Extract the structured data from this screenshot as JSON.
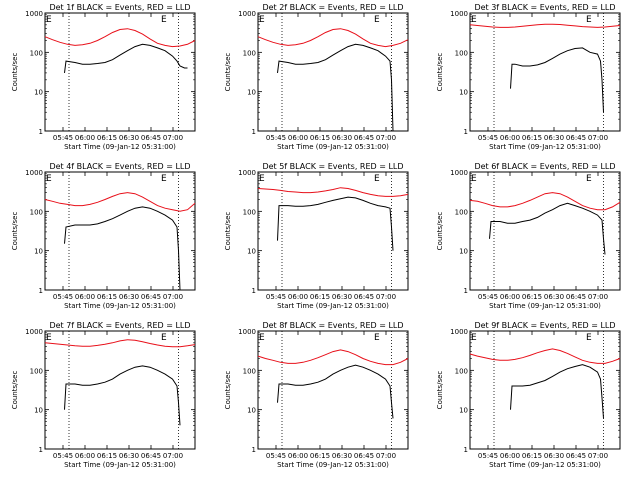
{
  "figure": {
    "start_time_label": "Start Time (09-Jan-12 05:31:00)",
    "ylabel": "Counts/sec",
    "x_ticks": [
      "05:45",
      "06:00",
      "06:15",
      "06:30",
      "06:45",
      "07:00"
    ],
    "y_ticks": [
      "1",
      "10",
      "100",
      "1000"
    ],
    "marker_text": "E",
    "colors": {
      "events": "#000000",
      "lld": "#e8101a",
      "guide": "#000000"
    }
  },
  "chart_data": [
    {
      "type": "line",
      "title": "Det 1f BLACK = Events, RED = LLD",
      "xlabel": "Start Time (09-Jan-12 05:31:00)",
      "ylabel": "Counts/sec",
      "xlim": [
        0,
        100
      ],
      "ylim": [
        1,
        1000
      ],
      "yscale": "log",
      "x": [
        0,
        5,
        10,
        15,
        20,
        25,
        30,
        35,
        40,
        45,
        50,
        55,
        60,
        65,
        70,
        75,
        80,
        85,
        90,
        95,
        100
      ],
      "guide_lines": [
        16,
        89
      ],
      "series": [
        {
          "name": "LLD",
          "color": "red",
          "values": [
            250,
            210,
            180,
            160,
            150,
            155,
            170,
            200,
            250,
            320,
            380,
            400,
            360,
            290,
            220,
            170,
            150,
            140,
            145,
            160,
            200
          ]
        },
        {
          "name": "Events",
          "color": "black",
          "x": [
            13,
            14,
            20,
            25,
            30,
            35,
            40,
            45,
            50,
            55,
            60,
            65,
            70,
            75,
            80,
            85,
            88,
            90,
            93,
            95
          ],
          "values": [
            30,
            60,
            55,
            50,
            50,
            52,
            55,
            65,
            85,
            110,
            140,
            160,
            150,
            130,
            110,
            80,
            60,
            45,
            40,
            40
          ]
        }
      ]
    },
    {
      "type": "line",
      "title": "Det 2f BLACK = Events, RED = LLD",
      "xlabel": "Start Time (09-Jan-12 05:31:00)",
      "ylabel": "Counts/sec",
      "xlim": [
        0,
        100
      ],
      "ylim": [
        1,
        1000
      ],
      "yscale": "log",
      "x": [
        0,
        5,
        10,
        15,
        20,
        25,
        30,
        35,
        40,
        45,
        50,
        55,
        60,
        65,
        70,
        75,
        80,
        85,
        90,
        95,
        100
      ],
      "guide_lines": [
        16,
        89
      ],
      "series": [
        {
          "name": "LLD",
          "color": "red",
          "values": [
            250,
            210,
            180,
            160,
            150,
            155,
            170,
            200,
            250,
            320,
            380,
            400,
            360,
            290,
            220,
            170,
            150,
            140,
            150,
            170,
            210
          ]
        },
        {
          "name": "Events",
          "color": "black",
          "x": [
            13,
            14,
            20,
            25,
            30,
            35,
            40,
            45,
            50,
            55,
            60,
            65,
            70,
            75,
            80,
            85,
            88,
            89,
            90
          ],
          "values": [
            30,
            60,
            55,
            50,
            50,
            52,
            55,
            65,
            85,
            110,
            140,
            160,
            150,
            130,
            110,
            80,
            60,
            20,
            1
          ]
        }
      ]
    },
    {
      "type": "line",
      "title": "Det 3f BLACK = Events, RED = LLD",
      "xlabel": "Start Time (09-Jan-12 05:31:00)",
      "ylabel": "Counts/sec",
      "xlim": [
        0,
        100
      ],
      "ylim": [
        1,
        1000
      ],
      "yscale": "log",
      "x": [
        0,
        5,
        10,
        15,
        20,
        25,
        30,
        35,
        40,
        45,
        50,
        55,
        60,
        65,
        70,
        75,
        80,
        85,
        90,
        95,
        100
      ],
      "guide_lines": [
        16,
        89
      ],
      "series": [
        {
          "name": "LLD",
          "color": "red",
          "values": [
            500,
            480,
            460,
            440,
            430,
            430,
            440,
            460,
            480,
            500,
            520,
            520,
            510,
            490,
            470,
            450,
            440,
            430,
            440,
            460,
            480
          ]
        },
        {
          "name": "Events",
          "color": "black",
          "x": [
            27,
            28,
            30,
            35,
            40,
            45,
            50,
            55,
            60,
            65,
            70,
            75,
            80,
            85,
            87,
            88,
            89
          ],
          "values": [
            12,
            50,
            50,
            45,
            45,
            48,
            55,
            70,
            90,
            110,
            125,
            130,
            100,
            90,
            60,
            20,
            3
          ]
        }
      ]
    },
    {
      "type": "line",
      "title": "Det 4f BLACK = Events, RED = LLD",
      "xlabel": "Start Time (09-Jan-12 05:31:00)",
      "ylabel": "Counts/sec",
      "xlim": [
        0,
        100
      ],
      "ylim": [
        1,
        1000
      ],
      "yscale": "log",
      "x": [
        0,
        5,
        10,
        15,
        20,
        25,
        30,
        35,
        40,
        45,
        50,
        55,
        60,
        65,
        70,
        75,
        80,
        85,
        90,
        95,
        100
      ],
      "guide_lines": [
        16,
        89
      ],
      "series": [
        {
          "name": "LLD",
          "color": "red",
          "values": [
            200,
            180,
            160,
            150,
            140,
            140,
            150,
            170,
            200,
            240,
            280,
            300,
            280,
            230,
            180,
            140,
            120,
            110,
            100,
            110,
            160
          ]
        },
        {
          "name": "Events",
          "color": "black",
          "x": [
            13,
            14,
            20,
            25,
            30,
            35,
            40,
            45,
            50,
            55,
            60,
            65,
            70,
            75,
            80,
            85,
            88,
            89,
            90
          ],
          "values": [
            15,
            40,
            45,
            45,
            45,
            48,
            55,
            65,
            80,
            100,
            120,
            130,
            120,
            100,
            80,
            60,
            40,
            10,
            1
          ]
        }
      ]
    },
    {
      "type": "line",
      "title": "Det 5f BLACK = Events, RED = LLD",
      "xlabel": "Start Time (09-Jan-12 05:31:00)",
      "ylabel": "Counts/sec",
      "xlim": [
        0,
        100
      ],
      "ylim": [
        1,
        1000
      ],
      "yscale": "log",
      "x": [
        0,
        5,
        10,
        15,
        20,
        25,
        30,
        35,
        40,
        45,
        50,
        55,
        60,
        65,
        70,
        75,
        80,
        85,
        90,
        95,
        100
      ],
      "guide_lines": [
        16,
        89
      ],
      "series": [
        {
          "name": "LLD",
          "color": "red",
          "values": [
            380,
            370,
            360,
            340,
            320,
            310,
            300,
            300,
            310,
            330,
            360,
            400,
            380,
            340,
            300,
            270,
            250,
            240,
            240,
            250,
            270
          ]
        },
        {
          "name": "Events",
          "color": "black",
          "x": [
            13,
            14,
            20,
            25,
            30,
            35,
            40,
            45,
            50,
            55,
            60,
            65,
            70,
            75,
            80,
            85,
            88,
            89,
            90
          ],
          "values": [
            18,
            140,
            140,
            135,
            135,
            140,
            150,
            170,
            190,
            210,
            230,
            220,
            190,
            160,
            140,
            130,
            120,
            40,
            10
          ]
        }
      ]
    },
    {
      "type": "line",
      "title": "Det 6f BLACK = Events, RED = LLD",
      "xlabel": "Start Time (09-Jan-12 05:31:00)",
      "ylabel": "Counts/sec",
      "xlim": [
        0,
        100
      ],
      "ylim": [
        1,
        1000
      ],
      "yscale": "log",
      "x": [
        0,
        5,
        10,
        15,
        20,
        25,
        30,
        35,
        40,
        45,
        50,
        55,
        60,
        65,
        70,
        75,
        80,
        85,
        90,
        95,
        100
      ],
      "guide_lines": [
        16,
        89
      ],
      "series": [
        {
          "name": "LLD",
          "color": "red",
          "values": [
            190,
            180,
            160,
            140,
            130,
            130,
            140,
            160,
            190,
            230,
            280,
            300,
            280,
            230,
            180,
            140,
            120,
            110,
            110,
            130,
            170
          ]
        },
        {
          "name": "Events",
          "color": "black",
          "x": [
            13,
            14,
            20,
            25,
            30,
            35,
            40,
            45,
            50,
            55,
            60,
            65,
            70,
            75,
            80,
            85,
            88,
            89,
            90
          ],
          "values": [
            20,
            55,
            55,
            50,
            50,
            55,
            60,
            70,
            90,
            110,
            140,
            160,
            140,
            120,
            100,
            80,
            60,
            20,
            8
          ]
        }
      ]
    },
    {
      "type": "line",
      "title": "Det 7f BLACK = Events, RED = LLD",
      "xlabel": "Start Time (09-Jan-12 05:31:00)",
      "ylabel": "Counts/sec",
      "xlim": [
        0,
        100
      ],
      "ylim": [
        1,
        1000
      ],
      "yscale": "log",
      "x": [
        0,
        5,
        10,
        15,
        20,
        25,
        30,
        35,
        40,
        45,
        50,
        55,
        60,
        65,
        70,
        75,
        80,
        85,
        90,
        95,
        100
      ],
      "guide_lines": [
        16,
        89
      ],
      "series": [
        {
          "name": "LLD",
          "color": "red",
          "values": [
            500,
            480,
            460,
            440,
            420,
            410,
            410,
            430,
            460,
            500,
            560,
            600,
            580,
            530,
            480,
            440,
            410,
            400,
            400,
            420,
            450
          ]
        },
        {
          "name": "Events",
          "color": "black",
          "x": [
            13,
            14,
            20,
            25,
            30,
            35,
            40,
            45,
            50,
            55,
            60,
            65,
            70,
            75,
            80,
            85,
            88,
            89,
            90
          ],
          "values": [
            10,
            45,
            45,
            42,
            42,
            45,
            50,
            60,
            80,
            100,
            120,
            130,
            120,
            100,
            80,
            60,
            40,
            15,
            4
          ]
        }
      ]
    },
    {
      "type": "line",
      "title": "Det 8f BLACK = Events, RED = LLD",
      "xlabel": "Start Time (09-Jan-12 05:31:00)",
      "ylabel": "Counts/sec",
      "xlim": [
        0,
        100
      ],
      "ylim": [
        1,
        1000
      ],
      "yscale": "log",
      "x": [
        0,
        5,
        10,
        15,
        20,
        25,
        30,
        35,
        40,
        45,
        50,
        55,
        60,
        65,
        70,
        75,
        80,
        85,
        90,
        95,
        100
      ],
      "guide_lines": [
        16,
        89
      ],
      "series": [
        {
          "name": "LLD",
          "color": "red",
          "values": [
            230,
            200,
            180,
            160,
            150,
            150,
            160,
            180,
            210,
            250,
            300,
            330,
            300,
            250,
            200,
            170,
            150,
            140,
            140,
            160,
            200
          ]
        },
        {
          "name": "Events",
          "color": "black",
          "x": [
            13,
            14,
            20,
            25,
            30,
            35,
            40,
            45,
            50,
            55,
            60,
            65,
            70,
            75,
            80,
            85,
            88,
            89,
            90
          ],
          "values": [
            15,
            45,
            45,
            42,
            42,
            45,
            50,
            60,
            80,
            100,
            120,
            135,
            120,
            100,
            80,
            60,
            40,
            15,
            6
          ]
        }
      ]
    },
    {
      "type": "line",
      "title": "Det 9f BLACK = Events, RED = LLD",
      "xlabel": "Start Time (09-Jan-12 05:31:00)",
      "ylabel": "Counts/sec",
      "xlim": [
        0,
        100
      ],
      "ylim": [
        1,
        1000
      ],
      "yscale": "log",
      "x": [
        0,
        5,
        10,
        15,
        20,
        25,
        30,
        35,
        40,
        45,
        50,
        55,
        60,
        65,
        70,
        75,
        80,
        85,
        90,
        95,
        100
      ],
      "guide_lines": [
        16,
        89
      ],
      "series": [
        {
          "name": "LLD",
          "color": "red",
          "values": [
            260,
            230,
            210,
            190,
            180,
            180,
            190,
            210,
            240,
            280,
            320,
            350,
            320,
            270,
            220,
            180,
            160,
            150,
            150,
            170,
            200
          ]
        },
        {
          "name": "Events",
          "color": "black",
          "x": [
            27,
            28,
            30,
            35,
            40,
            45,
            50,
            55,
            60,
            65,
            70,
            75,
            80,
            85,
            87,
            88,
            89
          ],
          "values": [
            10,
            40,
            40,
            40,
            42,
            48,
            55,
            70,
            90,
            110,
            125,
            140,
            120,
            90,
            60,
            20,
            6
          ]
        }
      ]
    }
  ]
}
